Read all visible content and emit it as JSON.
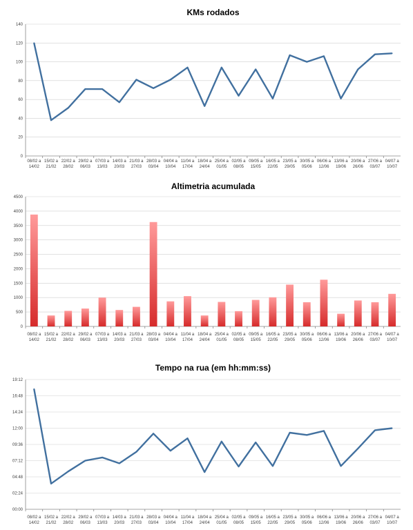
{
  "chart_data": [
    {
      "type": "line",
      "title": "KMs rodados",
      "categories": [
        "08/02 a|14/02",
        "15/02 a|21/02",
        "22/02 a|28/02",
        "29/02 a|06/03",
        "07/03 a|13/03",
        "14/03 a|20/03",
        "21/03 a|27/03",
        "28/03 a|03/04",
        "04/04 a|10/04",
        "11/04 a|17/04",
        "18/04 a|24/04",
        "25/04 a|01/05",
        "02/05 a|08/05",
        "09/05 a|15/05",
        "16/05 a|22/05",
        "23/05 a|29/05",
        "30/05 a|05/06",
        "06/06 a|12/06",
        "13/06 a|19/06",
        "20/06 a|26/06",
        "27/06 a|03/07",
        "04/07 a|10/07"
      ],
      "values": [
        120,
        38,
        51,
        71,
        71,
        57,
        81,
        72,
        81,
        94,
        53,
        94,
        64,
        92,
        61,
        107,
        100,
        106,
        61,
        92,
        108,
        109
      ],
      "ylim": [
        0,
        140
      ],
      "yticks": [
        "0",
        "20",
        "40",
        "60",
        "80",
        "100",
        "120",
        "140"
      ],
      "color": "#41709f",
      "grid": true
    },
    {
      "type": "bar",
      "title": "Altimetria acumulada",
      "categories": [
        "08/02 a|14/02",
        "15/02 a|21/02",
        "22/02 a|28/02",
        "29/02 a|06/03",
        "07/03 a|13/03",
        "14/03 a|20/03",
        "21/03 a|27/03",
        "28/03 a|03/04",
        "04/04 a|10/04",
        "11/04 a|17/04",
        "18/04 a|24/04",
        "25/04 a|01/05",
        "02/05 a|08/05",
        "09/05 a|15/05",
        "16/05 a|22/05",
        "23/05 a|29/05",
        "30/05 a|05/06",
        "06/06 a|12/06",
        "13/06 a|19/06",
        "20/06 a|26/06",
        "27/06 a|03/07",
        "04/07 a|10/07"
      ],
      "values": [
        3880,
        380,
        540,
        620,
        1000,
        570,
        680,
        3620,
        870,
        1050,
        380,
        850,
        530,
        920,
        1010,
        1450,
        840,
        1620,
        440,
        900,
        840,
        1130
      ],
      "ylim": [
        0,
        4500
      ],
      "yticks": [
        "0",
        "500",
        "1000",
        "1500",
        "2000",
        "2500",
        "3000",
        "3500",
        "4000",
        "4500"
      ],
      "color_top": "#ff9a9a",
      "color_bottom": "#d62b2b",
      "grid": true
    },
    {
      "type": "line",
      "title": "Tempo na rua (em hh:mm:ss)",
      "categories": [
        "08/02 a|14/02",
        "15/02 a|21/02",
        "22/02 a|28/02",
        "29/02 a|06/03",
        "07/03 a|13/03",
        "14/03 a|20/03",
        "21/03 a|27/03",
        "28/03 a|03/04",
        "04/04 a|10/04",
        "11/04 a|17/04",
        "18/04 a|24/04",
        "25/04 a|01/05",
        "02/05 a|08/05",
        "09/05 a|15/05",
        "16/05 a|22/05",
        "23/05 a|29/05",
        "30/05 a|05/06",
        "06/06 a|12/06",
        "13/06 a|19/06",
        "20/06 a|26/06",
        "27/06 a|03/07",
        "04/07 a|10/07"
      ],
      "values": [
        "17:48",
        "03:48",
        "05:36",
        "07:12",
        "07:40",
        "06:48",
        "08:30",
        "11:12",
        "08:40",
        "10:30",
        "05:30",
        "10:02",
        "06:20",
        "09:54",
        "06:24",
        "11:20",
        "11:00",
        "11:36",
        "06:24",
        "09:00",
        "11:42",
        "12:00"
      ],
      "ylim": [
        "00:00",
        "19:12"
      ],
      "yticks": [
        "00:00",
        "02:24",
        "04:48",
        "07:12",
        "09:36",
        "12:00",
        "14:24",
        "16:48",
        "19:12"
      ],
      "color": "#41709f",
      "grid": true
    }
  ]
}
